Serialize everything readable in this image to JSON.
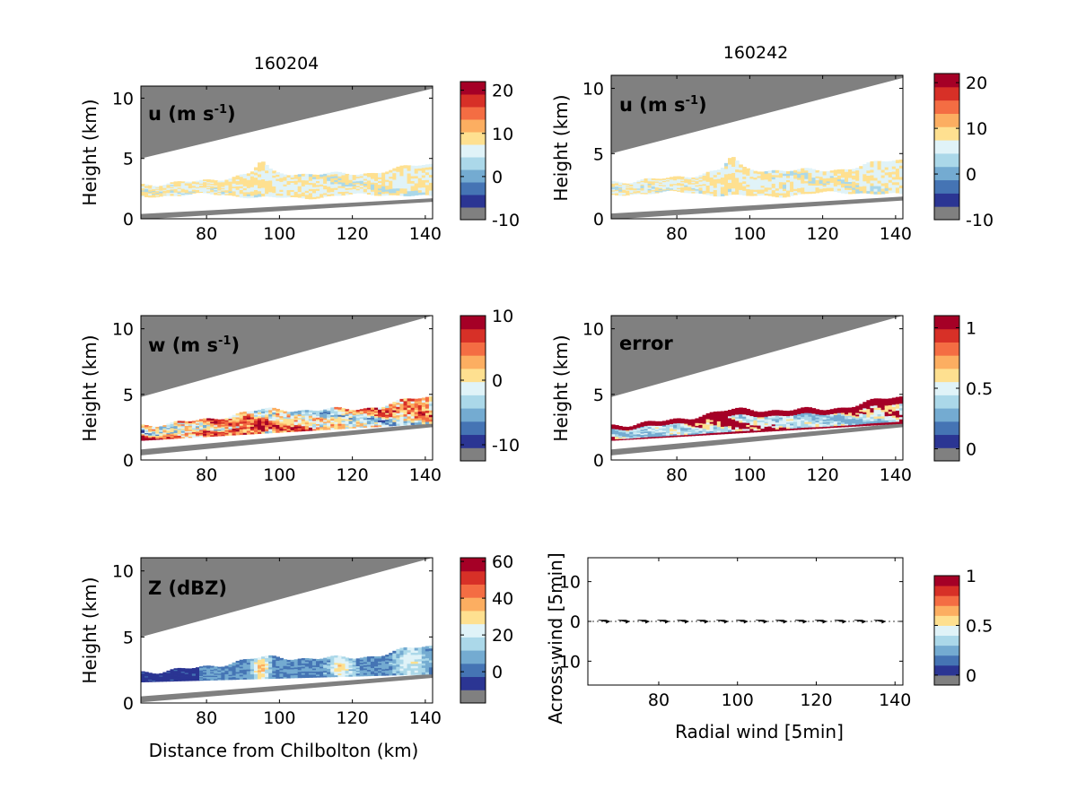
{
  "colorbar_palette": [
    "#808080",
    "#2b3593",
    "#4574b4",
    "#74abd1",
    "#abd8e9",
    "#e0f3f8",
    "#fee090",
    "#fcae61",
    "#f46d43",
    "#d73027",
    "#a50026"
  ],
  "gray": "#808080",
  "chart_data": [
    {
      "type": "heatmap",
      "column_title": "160204",
      "panel_label": "u (m s",
      "panel_label_sup": "-1",
      "panel_label_end": ")",
      "ylabel": "Height (km)",
      "xlabel": "",
      "xlim": [
        62,
        142
      ],
      "ylim": [
        0,
        11
      ],
      "xticks": [
        "80",
        "100",
        "120",
        "140"
      ],
      "yticks": [
        "0",
        "5",
        "10"
      ],
      "colorbar": {
        "range": [
          -10,
          22
        ],
        "ticks": [
          "-10",
          "0",
          "10",
          "20"
        ]
      },
      "field": "u",
      "beam_top": [
        5.0,
        10.8
      ],
      "beam_bottom": [
        0.4,
        1.7
      ],
      "echo_top": [
        3.0,
        4.3
      ],
      "echo_bottom": [
        1.9,
        1.9
      ]
    },
    {
      "type": "heatmap",
      "column_title": "160242",
      "panel_label": "u (m s",
      "panel_label_sup": "-1",
      "panel_label_end": ")",
      "ylabel": "Height (km)",
      "xlabel": "",
      "xlim": [
        62,
        142
      ],
      "ylim": [
        0,
        11
      ],
      "xticks": [
        "80",
        "100",
        "120",
        "140"
      ],
      "yticks": [
        "0",
        "5",
        "10"
      ],
      "colorbar": {
        "range": [
          -10,
          22
        ],
        "ticks": [
          "-10",
          "0",
          "10",
          "20"
        ]
      },
      "field": "u",
      "beam_top": [
        5.0,
        10.8
      ],
      "beam_bottom": [
        0.4,
        1.7
      ],
      "echo_top": [
        3.0,
        4.3
      ],
      "echo_bottom": [
        1.9,
        1.9
      ]
    },
    {
      "type": "heatmap",
      "column_title": "",
      "panel_label": "w (m s",
      "panel_label_sup": "-1",
      "panel_label_end": ")",
      "ylabel": "Height (km)",
      "xlabel": "",
      "xlim": [
        62,
        142
      ],
      "ylim": [
        0,
        11
      ],
      "xticks": [
        "80",
        "100",
        "120",
        "140"
      ],
      "yticks": [
        "0",
        "5",
        "10"
      ],
      "colorbar": {
        "range": [
          -12.5,
          10
        ],
        "ticks": [
          "-10",
          "0",
          "10"
        ]
      },
      "field": "w",
      "beam_top": [
        4.8,
        11.0
      ],
      "beam_bottom": [
        0.8,
        2.8
      ],
      "echo_top": [
        2.8,
        4.6
      ],
      "echo_bottom": [
        1.5,
        2.8
      ]
    },
    {
      "type": "heatmap",
      "column_title": "",
      "panel_label": "error",
      "panel_label_sup": "",
      "panel_label_end": "",
      "ylabel": "Height (km)",
      "xlabel": "",
      "xlim": [
        62,
        142
      ],
      "ylim": [
        0,
        11
      ],
      "xticks": [
        "80",
        "100",
        "120",
        "140"
      ],
      "yticks": [
        "0",
        "5",
        "10"
      ],
      "colorbar": {
        "range": [
          -0.1,
          1.1
        ],
        "ticks": [
          "0",
          "0.5",
          "1"
        ]
      },
      "field": "error",
      "beam_top": [
        4.8,
        11.0
      ],
      "beam_bottom": [
        0.8,
        2.8
      ],
      "echo_top": [
        2.8,
        4.6
      ],
      "echo_bottom": [
        1.5,
        2.8
      ]
    },
    {
      "type": "heatmap",
      "column_title": "",
      "panel_label": "Z (dBZ)",
      "panel_label_sup": "",
      "panel_label_end": "",
      "ylabel": "Height (km)",
      "xlabel": "Distance from Chilbolton (km)",
      "xlim": [
        62,
        142
      ],
      "ylim": [
        0,
        11
      ],
      "xticks": [
        "80",
        "100",
        "120",
        "140"
      ],
      "yticks": [
        "0",
        "5",
        "10"
      ],
      "colorbar": {
        "range": [
          -17,
          62
        ],
        "ticks": [
          "0",
          "20",
          "40",
          "60"
        ]
      },
      "field": "Z",
      "beam_top": [
        5.0,
        11.0
      ],
      "beam_bottom": [
        0.5,
        2.2
      ],
      "echo_top": [
        2.5,
        4.1
      ],
      "echo_bottom": [
        1.6,
        2.2
      ]
    },
    {
      "type": "scatter",
      "column_title": "",
      "panel_label": "",
      "ylabel": "Across wind [5min]",
      "xlabel": "Radial wind [5min]",
      "xlim": [
        62,
        142
      ],
      "ylim": [
        -16,
        16
      ],
      "xticks": [
        "80",
        "100",
        "120",
        "140"
      ],
      "yticks": [
        "-10",
        "0",
        "10"
      ],
      "colorbar": {
        "range": [
          -0.1,
          1.0
        ],
        "ticks": [
          "0",
          "0.5",
          "1"
        ]
      },
      "x": [
        66,
        71,
        76,
        81,
        86,
        91,
        96,
        101,
        106,
        111,
        116,
        121,
        126,
        131,
        136
      ],
      "y": [
        0,
        0,
        0,
        0,
        0,
        0,
        0,
        0,
        0,
        0,
        0,
        0,
        0,
        0,
        0
      ]
    }
  ]
}
